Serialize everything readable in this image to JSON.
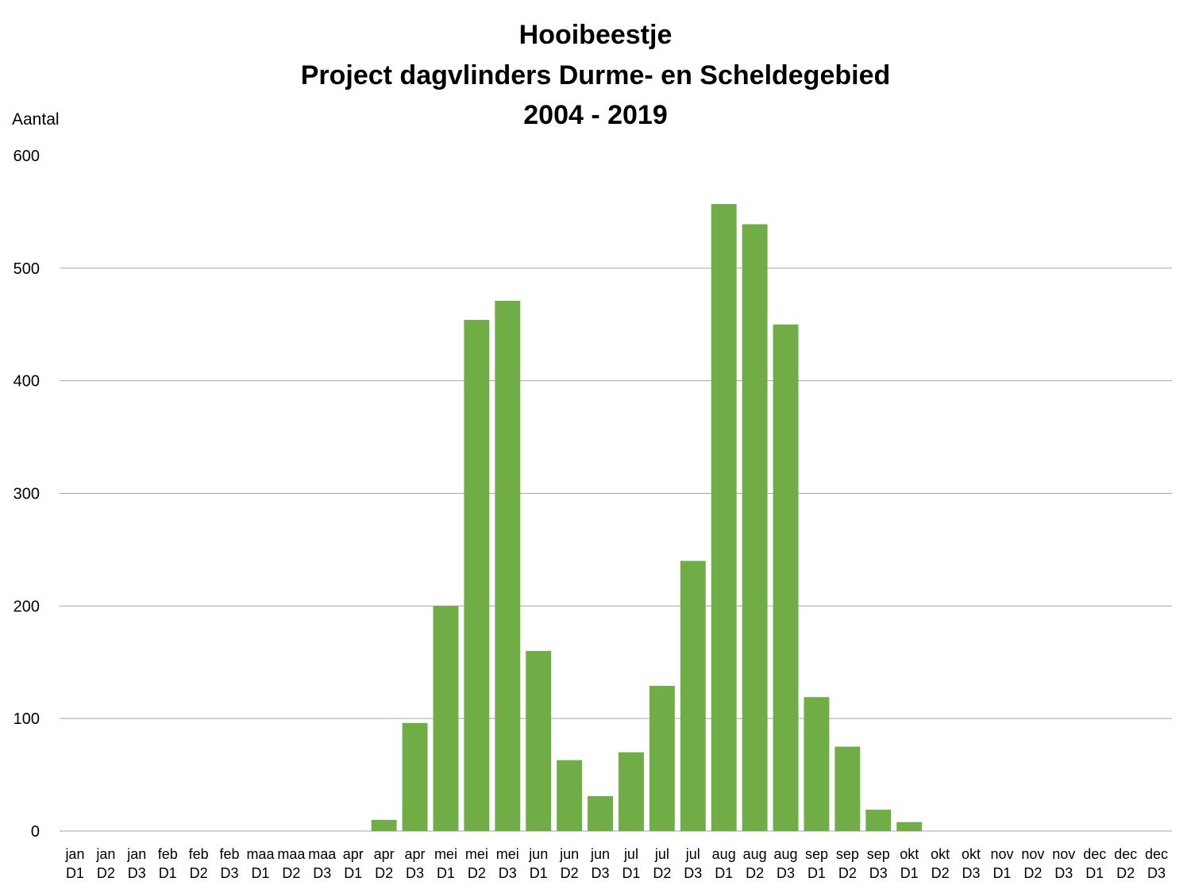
{
  "chart_data": {
    "type": "bar",
    "title": [
      "Hooibeestje",
      "Project dagvlinders Durme- en Scheldegebied",
      "2004 - 2019"
    ],
    "ylabel": "Aantal",
    "xlabel": "",
    "ylim": [
      0,
      600
    ],
    "yticks": [
      0,
      100,
      200,
      300,
      400,
      500,
      600
    ],
    "grid": true,
    "bar_color": "#70ad47",
    "categories": [
      [
        "jan",
        "D1"
      ],
      [
        "jan",
        "D2"
      ],
      [
        "jan",
        "D3"
      ],
      [
        "feb",
        "D1"
      ],
      [
        "feb",
        "D2"
      ],
      [
        "feb",
        "D3"
      ],
      [
        "maa",
        "D1"
      ],
      [
        "maa",
        "D2"
      ],
      [
        "maa",
        "D3"
      ],
      [
        "apr",
        "D1"
      ],
      [
        "apr",
        "D2"
      ],
      [
        "apr",
        "D3"
      ],
      [
        "mei",
        "D1"
      ],
      [
        "mei",
        "D2"
      ],
      [
        "mei",
        "D3"
      ],
      [
        "jun",
        "D1"
      ],
      [
        "jun",
        "D2"
      ],
      [
        "jun",
        "D3"
      ],
      [
        "jul",
        "D1"
      ],
      [
        "jul",
        "D2"
      ],
      [
        "jul",
        "D3"
      ],
      [
        "aug",
        "D1"
      ],
      [
        "aug",
        "D2"
      ],
      [
        "aug",
        "D3"
      ],
      [
        "sep",
        "D1"
      ],
      [
        "sep",
        "D2"
      ],
      [
        "sep",
        "D3"
      ],
      [
        "okt",
        "D1"
      ],
      [
        "okt",
        "D2"
      ],
      [
        "okt",
        "D3"
      ],
      [
        "nov",
        "D1"
      ],
      [
        "nov",
        "D2"
      ],
      [
        "nov",
        "D3"
      ],
      [
        "dec",
        "D1"
      ],
      [
        "dec",
        "D2"
      ],
      [
        "dec",
        "D3"
      ]
    ],
    "values": [
      0,
      0,
      0,
      0,
      0,
      0,
      0,
      0,
      0,
      0,
      10,
      96,
      200,
      454,
      471,
      160,
      63,
      31,
      70,
      129,
      240,
      557,
      539,
      450,
      119,
      75,
      19,
      8,
      0,
      0,
      0,
      0,
      0,
      0,
      0,
      0
    ]
  }
}
